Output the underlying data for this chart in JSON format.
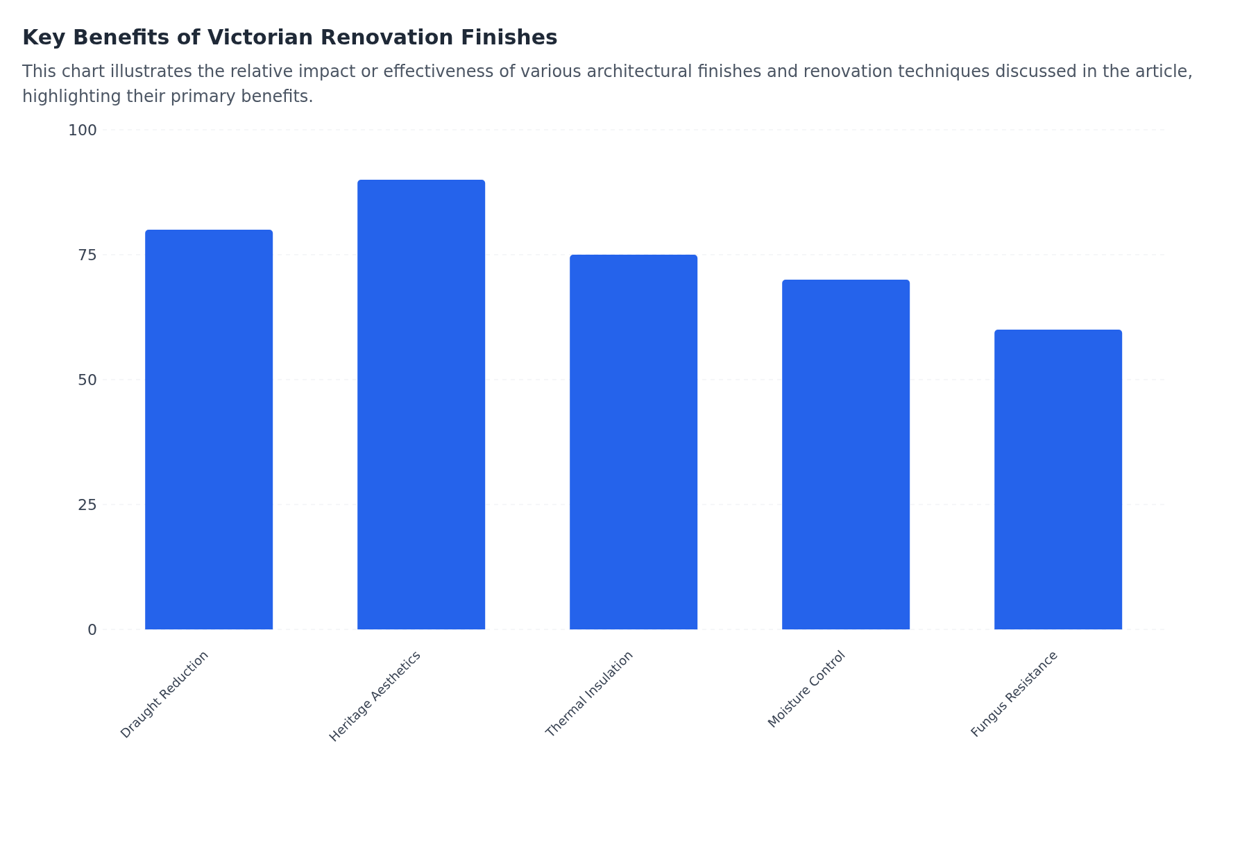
{
  "chart_data": {
    "type": "bar",
    "title": "Key Benefits of Victorian Renovation Finishes",
    "subtitle": "This chart illustrates the relative impact or effectiveness of various architectural finishes and renovation techniques discussed in the article, highlighting their primary benefits.",
    "categories": [
      "Draught Reduction",
      "Heritage Aesthetics",
      "Thermal Insulation",
      "Moisture Control",
      "Fungus Resistance"
    ],
    "values": [
      80,
      90,
      75,
      70,
      60
    ],
    "color": "#2563eb",
    "ylim": [
      0,
      100
    ],
    "yticks": [
      0,
      25,
      50,
      75,
      100
    ],
    "grid": "y"
  }
}
